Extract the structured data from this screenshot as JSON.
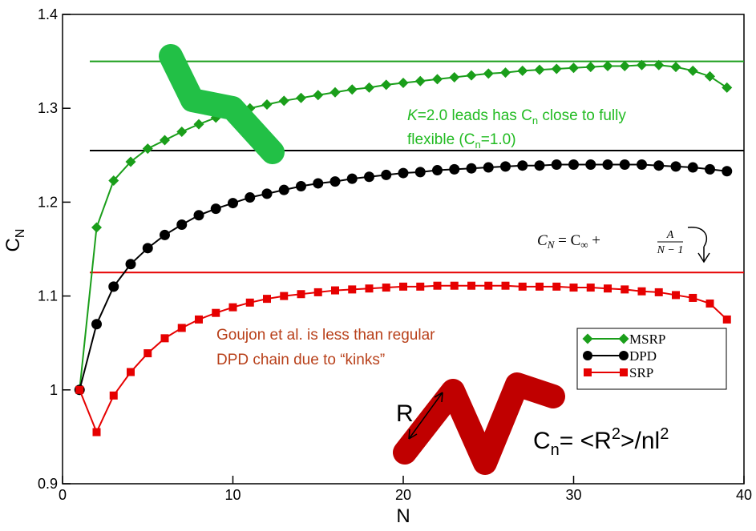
{
  "chart_data": {
    "type": "line",
    "x_label": "N",
    "y_label": "C",
    "y_label_sub": "N",
    "xlim": [
      0,
      40
    ],
    "ylim": [
      0.9,
      1.4
    ],
    "xticks": [
      0,
      10,
      20,
      30,
      40
    ],
    "yticks": [
      0.9,
      1,
      1.1,
      1.2,
      1.3,
      1.4
    ],
    "x": [
      1,
      2,
      3,
      4,
      5,
      6,
      7,
      8,
      9,
      10,
      11,
      12,
      13,
      14,
      15,
      16,
      17,
      18,
      19,
      20,
      21,
      22,
      23,
      24,
      25,
      26,
      27,
      28,
      29,
      30,
      31,
      32,
      33,
      34,
      35,
      36,
      37,
      38,
      39
    ],
    "series": [
      {
        "name": "MSRP",
        "color": "#1a9e1a",
        "marker": "diamond",
        "values": [
          1.0,
          1.173,
          1.223,
          1.243,
          1.257,
          1.266,
          1.275,
          1.283,
          1.29,
          1.295,
          1.3,
          1.304,
          1.308,
          1.311,
          1.314,
          1.317,
          1.32,
          1.322,
          1.325,
          1.327,
          1.329,
          1.331,
          1.333,
          1.335,
          1.337,
          1.338,
          1.34,
          1.341,
          1.342,
          1.343,
          1.344,
          1.345,
          1.345,
          1.346,
          1.346,
          1.344,
          1.34,
          1.334,
          1.322
        ]
      },
      {
        "name": "DPD",
        "color": "#000000",
        "marker": "circle",
        "values": [
          1.0,
          1.07,
          1.11,
          1.134,
          1.151,
          1.165,
          1.176,
          1.186,
          1.193,
          1.199,
          1.205,
          1.209,
          1.213,
          1.217,
          1.22,
          1.222,
          1.225,
          1.227,
          1.229,
          1.231,
          1.232,
          1.234,
          1.235,
          1.236,
          1.237,
          1.238,
          1.239,
          1.239,
          1.24,
          1.24,
          1.24,
          1.24,
          1.24,
          1.24,
          1.239,
          1.238,
          1.237,
          1.235,
          1.233
        ]
      },
      {
        "name": "SRP",
        "color": "#e60000",
        "marker": "square",
        "values": [
          1.0,
          0.955,
          0.994,
          1.019,
          1.039,
          1.055,
          1.066,
          1.075,
          1.082,
          1.088,
          1.093,
          1.097,
          1.1,
          1.102,
          1.104,
          1.106,
          1.107,
          1.108,
          1.109,
          1.11,
          1.11,
          1.111,
          1.111,
          1.111,
          1.111,
          1.111,
          1.11,
          1.11,
          1.11,
          1.109,
          1.109,
          1.108,
          1.107,
          1.105,
          1.104,
          1.101,
          1.098,
          1.092,
          1.075
        ]
      }
    ],
    "hlines": [
      {
        "value": 1.35,
        "color": "#1a9e1a",
        "x": [
          1.6,
          40
        ]
      },
      {
        "value": 1.255,
        "color": "#000000",
        "x": [
          1.6,
          40
        ]
      },
      {
        "value": 1.125,
        "color": "#e60000",
        "x": [
          1.6,
          40
        ]
      }
    ],
    "annotations": {
      "green": {
        "line1": [
          "K",
          "=2.0 leads has C",
          "n",
          " close to fully"
        ],
        "line2": [
          "flexible (C",
          "n",
          "=1.0)"
        ]
      },
      "brown": {
        "line1": "Goujon et al. is less than regular",
        "line2": "DPD chain due to “kinks”"
      },
      "formula": [
        "C",
        "N",
        " = C",
        "∞",
        " + ",
        "A",
        "N − 1"
      ],
      "r_label": "R",
      "cn": [
        "C",
        "n",
        "= <R",
        "2",
        ">/nl",
        "2"
      ]
    }
  }
}
